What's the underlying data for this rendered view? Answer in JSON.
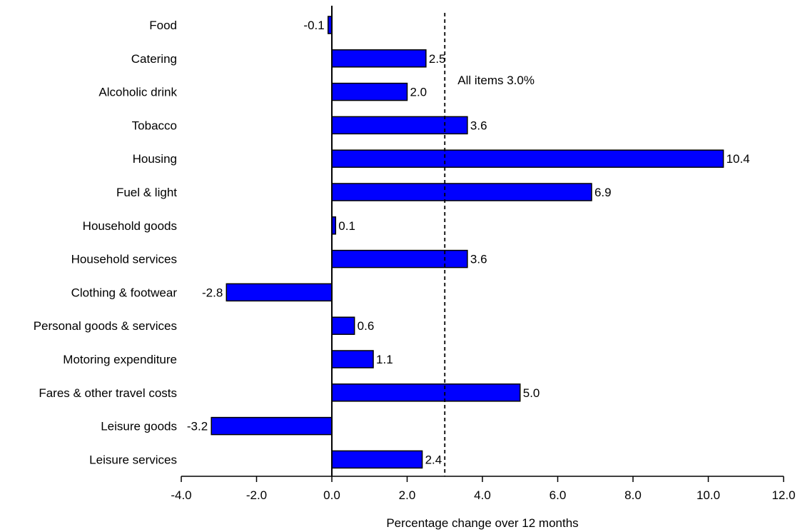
{
  "chart_data": {
    "type": "bar",
    "orientation": "horizontal",
    "categories": [
      "Food",
      "Catering",
      "Alcoholic drink",
      "Tobacco",
      "Housing",
      "Fuel & light",
      "Household goods",
      "Household services",
      "Clothing & footwear",
      "Personal goods & services",
      "Motoring expenditure",
      "Fares & other travel costs",
      "Leisure goods",
      "Leisure services"
    ],
    "values": [
      -0.1,
      2.5,
      2.0,
      3.6,
      10.4,
      6.9,
      0.1,
      3.6,
      -2.8,
      0.6,
      1.1,
      5.0,
      -3.2,
      2.4
    ],
    "value_labels": [
      "-0.1",
      "2.5",
      "2.0",
      "3.6",
      "10.4",
      "6.9",
      "0.1",
      "3.6",
      "-2.8",
      "0.6",
      "1.1",
      "5.0",
      "-3.2",
      "2.4"
    ],
    "xlabel": "Percentage change over 12 months",
    "xlim": [
      -4.0,
      12.0
    ],
    "xticks": [
      -4.0,
      -2.0,
      0.0,
      2.0,
      4.0,
      6.0,
      8.0,
      10.0,
      12.0
    ],
    "xtick_labels": [
      "-4.0",
      "-2.0",
      "0.0",
      "2.0",
      "4.0",
      "6.0",
      "8.0",
      "10.0",
      "12.0"
    ],
    "reference_line": {
      "value": 3.0,
      "label": "All items 3.0%",
      "style": "dashed"
    },
    "bar_color": "#0000ff",
    "bar_edge_color": "#000000",
    "grid": false,
    "legend": "none"
  }
}
